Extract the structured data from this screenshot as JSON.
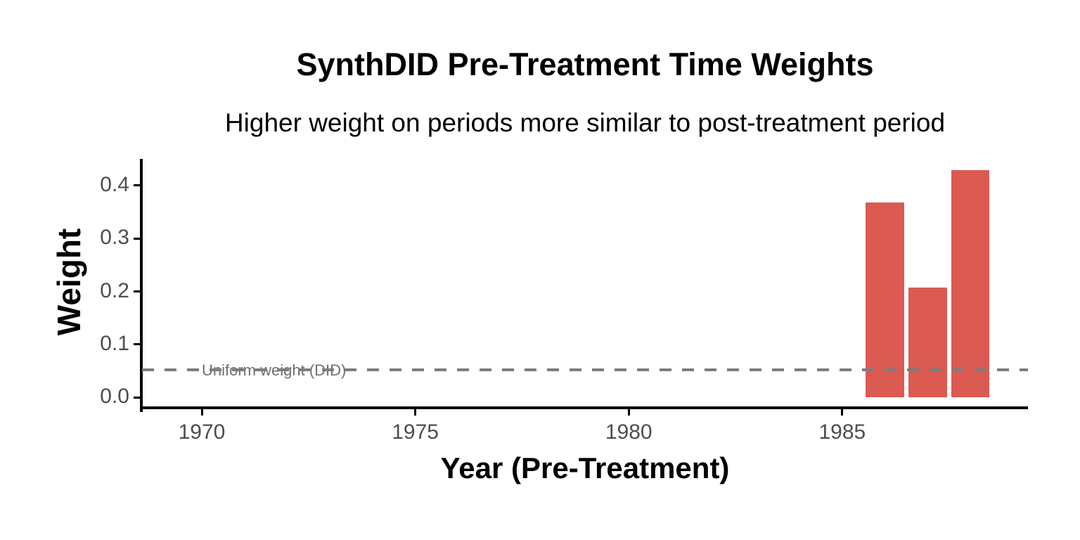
{
  "chart_data": {
    "type": "bar",
    "title": "SynthDID Pre-Treatment Time Weights",
    "subtitle": "Higher weight on periods more similar to post-treatment period",
    "xlabel": "Year (Pre-Treatment)",
    "ylabel": "Weight",
    "x": [
      1986,
      1987,
      1988
    ],
    "values": [
      0.368,
      0.207,
      0.429
    ],
    "bar_width_years": 0.9,
    "bar_color": "#DB5A52",
    "x_ticks": [
      1970,
      1975,
      1980,
      1985
    ],
    "y_ticks": [
      0.0,
      0.1,
      0.2,
      0.3,
      0.4
    ],
    "xlim": [
      1968.6,
      1989.35
    ],
    "ylim": [
      -0.022,
      0.45
    ],
    "grid": false,
    "legend": "none",
    "reference_line": {
      "value": 0.0526,
      "label": "Uniform weight (DID)",
      "style": "dashed",
      "color": "#7d7d7d"
    },
    "colors": {
      "axis_text": "#4d4d4d",
      "axis_line": "#000000",
      "title_text": "#000000"
    }
  }
}
